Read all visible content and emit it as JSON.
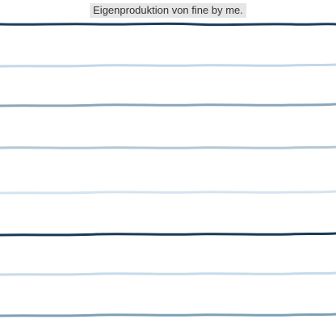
{
  "caption": "Eigenproduktion von fine by me.",
  "stripes": [
    {
      "name": "stripe-1",
      "color": "#1e3d5a"
    },
    {
      "name": "stripe-2",
      "color": "#c3d8e8"
    },
    {
      "name": "stripe-3",
      "color": "#8aa6bc"
    },
    {
      "name": "stripe-4",
      "color": "#b2c8d6"
    },
    {
      "name": "stripe-5",
      "color": "#d4e4f0"
    },
    {
      "name": "stripe-6",
      "color": "#173a56"
    },
    {
      "name": "stripe-7",
      "color": "#c6dbea"
    },
    {
      "name": "stripe-8",
      "color": "#7e9fb6"
    }
  ]
}
